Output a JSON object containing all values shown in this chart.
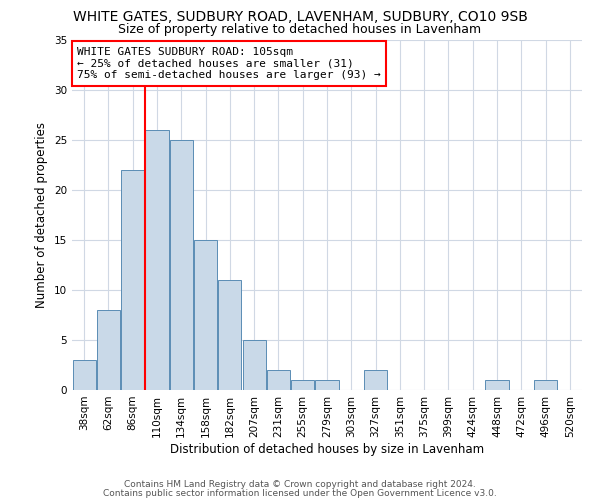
{
  "title": "WHITE GATES, SUDBURY ROAD, LAVENHAM, SUDBURY, CO10 9SB",
  "subtitle": "Size of property relative to detached houses in Lavenham",
  "xlabel": "Distribution of detached houses by size in Lavenham",
  "ylabel": "Number of detached properties",
  "bin_labels": [
    "38sqm",
    "62sqm",
    "86sqm",
    "110sqm",
    "134sqm",
    "158sqm",
    "182sqm",
    "207sqm",
    "231sqm",
    "255sqm",
    "279sqm",
    "303sqm",
    "327sqm",
    "351sqm",
    "375sqm",
    "399sqm",
    "424sqm",
    "448sqm",
    "472sqm",
    "496sqm",
    "520sqm"
  ],
  "bar_heights": [
    3,
    8,
    22,
    26,
    25,
    15,
    11,
    5,
    2,
    1,
    1,
    0,
    2,
    0,
    0,
    0,
    0,
    1,
    0,
    1,
    0
  ],
  "bar_color": "#c9d9e8",
  "bar_edge_color": "#5a8db5",
  "red_line_index": 3,
  "ylim": [
    0,
    35
  ],
  "yticks": [
    0,
    5,
    10,
    15,
    20,
    25,
    30,
    35
  ],
  "annotation_title": "WHITE GATES SUDBURY ROAD: 105sqm",
  "annotation_line1": "← 25% of detached houses are smaller (31)",
  "annotation_line2": "75% of semi-detached houses are larger (93) →",
  "footer1": "Contains HM Land Registry data © Crown copyright and database right 2024.",
  "footer2": "Contains public sector information licensed under the Open Government Licence v3.0.",
  "bg_color": "#ffffff",
  "grid_color": "#d0d8e4",
  "title_fontsize": 10,
  "subtitle_fontsize": 9,
  "axis_label_fontsize": 8.5,
  "tick_fontsize": 7.5,
  "annotation_fontsize": 8,
  "footer_fontsize": 6.5
}
